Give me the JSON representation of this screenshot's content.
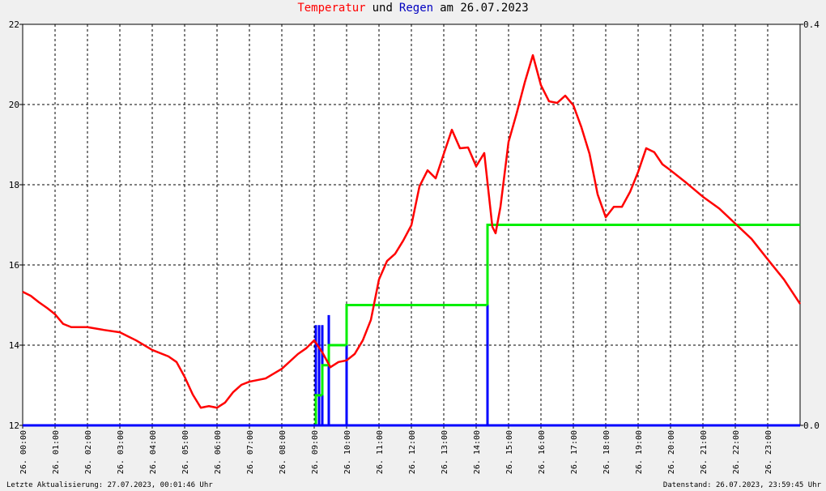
{
  "chart_data": {
    "type": "line",
    "title_parts": [
      {
        "text": "Temperatur",
        "color": "#ff0000"
      },
      {
        "text": "und",
        "color": "#000000"
      },
      {
        "text": "Regen",
        "color": "#0000c0"
      },
      {
        "text": "am 26.07.2023",
        "color": "#000000"
      }
    ],
    "xlim": [
      0,
      24
    ],
    "xticks": [
      {
        "value": 0,
        "label": "26. 00:00"
      },
      {
        "value": 1,
        "label": "26. 01:00"
      },
      {
        "value": 2,
        "label": "26. 02:00"
      },
      {
        "value": 3,
        "label": "26. 03:00"
      },
      {
        "value": 4,
        "label": "26. 04:00"
      },
      {
        "value": 5,
        "label": "26. 05:00"
      },
      {
        "value": 6,
        "label": "26. 06:00"
      },
      {
        "value": 7,
        "label": "26. 07:00"
      },
      {
        "value": 8,
        "label": "26. 08:00"
      },
      {
        "value": 9,
        "label": "26. 09:00"
      },
      {
        "value": 10,
        "label": "26. 10:00"
      },
      {
        "value": 11,
        "label": "26. 11:00"
      },
      {
        "value": 12,
        "label": "26. 12:00"
      },
      {
        "value": 13,
        "label": "26. 13:00"
      },
      {
        "value": 14,
        "label": "26. 14:00"
      },
      {
        "value": 15,
        "label": "26. 15:00"
      },
      {
        "value": 16,
        "label": "26. 16:00"
      },
      {
        "value": 17,
        "label": "26. 17:00"
      },
      {
        "value": 18,
        "label": "26. 18:00"
      },
      {
        "value": 19,
        "label": "26. 19:00"
      },
      {
        "value": 20,
        "label": "26. 20:00"
      },
      {
        "value": 21,
        "label": "26. 21:00"
      },
      {
        "value": 22,
        "label": "26. 22:00"
      },
      {
        "value": 23,
        "label": "26. 23:00"
      }
    ],
    "ylim": [
      12,
      22
    ],
    "yticks": [
      12,
      14,
      16,
      18,
      20,
      22
    ],
    "y2lim": [
      0,
      0.4
    ],
    "y2ticks": [
      {
        "value": 0,
        "label": "0.0"
      },
      {
        "value": 0.4,
        "label": "0.4"
      }
    ],
    "grid": true,
    "series": [
      {
        "type": "bar",
        "axis": "y2",
        "color": "#0000ff",
        "x": [
          9.05,
          9.15,
          9.25,
          9.45,
          10.0,
          14.35
        ],
        "values": [
          0.1,
          0.1,
          0.1,
          0.11,
          0.1,
          0.18
        ]
      },
      {
        "type": "step",
        "axis": "y2",
        "color": "#00ee00",
        "x": [
          0,
          9.05,
          9.25,
          9.45,
          10.0,
          14.35,
          24
        ],
        "values": [
          0,
          0.03,
          0.06,
          0.08,
          0.12,
          0.2,
          0.2
        ]
      },
      {
        "type": "line",
        "color": "#ff0000",
        "x": [
          0,
          0.25,
          0.5,
          0.75,
          1.0,
          1.25,
          1.5,
          2.0,
          2.5,
          3.0,
          3.25,
          3.5,
          4.0,
          4.5,
          4.75,
          5.0,
          5.25,
          5.5,
          5.75,
          6.0,
          6.25,
          6.5,
          6.75,
          7.0,
          7.5,
          8.0,
          8.5,
          8.75,
          9.0,
          9.25,
          9.5,
          9.75,
          10.0,
          10.25,
          10.5,
          10.75,
          11.0,
          11.25,
          11.5,
          11.75,
          12.0,
          12.25,
          12.5,
          12.75,
          13.0,
          13.25,
          13.5,
          13.75,
          14.0,
          14.25,
          14.5,
          14.6,
          14.75,
          15.0,
          15.25,
          15.5,
          15.75,
          16.0,
          16.25,
          16.5,
          16.75,
          17.0,
          17.25,
          17.5,
          17.75,
          18.0,
          18.25,
          18.5,
          18.75,
          19.0,
          19.25,
          19.5,
          19.75,
          20.0,
          20.5,
          21.0,
          21.5,
          22.0,
          22.5,
          23.0,
          23.5,
          24.0
        ],
        "values": [
          15.33,
          15.23,
          15.07,
          14.93,
          14.77,
          14.53,
          14.45,
          14.45,
          14.38,
          14.32,
          14.22,
          14.12,
          13.88,
          13.72,
          13.58,
          13.21,
          12.77,
          12.44,
          12.48,
          12.44,
          12.57,
          12.83,
          13.01,
          13.09,
          13.17,
          13.41,
          13.78,
          13.92,
          14.12,
          13.82,
          13.45,
          13.58,
          13.62,
          13.78,
          14.12,
          14.63,
          15.64,
          16.1,
          16.28,
          16.61,
          16.99,
          17.96,
          18.36,
          18.16,
          18.77,
          19.37,
          18.91,
          18.93,
          18.46,
          18.79,
          16.95,
          16.79,
          17.45,
          19.07,
          19.78,
          20.55,
          21.23,
          20.48,
          20.08,
          20.04,
          20.22,
          19.98,
          19.43,
          18.77,
          17.76,
          17.19,
          17.45,
          17.45,
          17.82,
          18.32,
          18.91,
          18.81,
          18.51,
          18.36,
          18.04,
          17.7,
          17.41,
          17.03,
          16.65,
          16.14,
          15.64,
          15.03
        ]
      }
    ],
    "footer_left": "Letzte Aktualisierung: 27.07.2023, 00:01:46 Uhr",
    "footer_right": "Datenstand: 26.07.2023, 23:59:45 Uhr"
  }
}
